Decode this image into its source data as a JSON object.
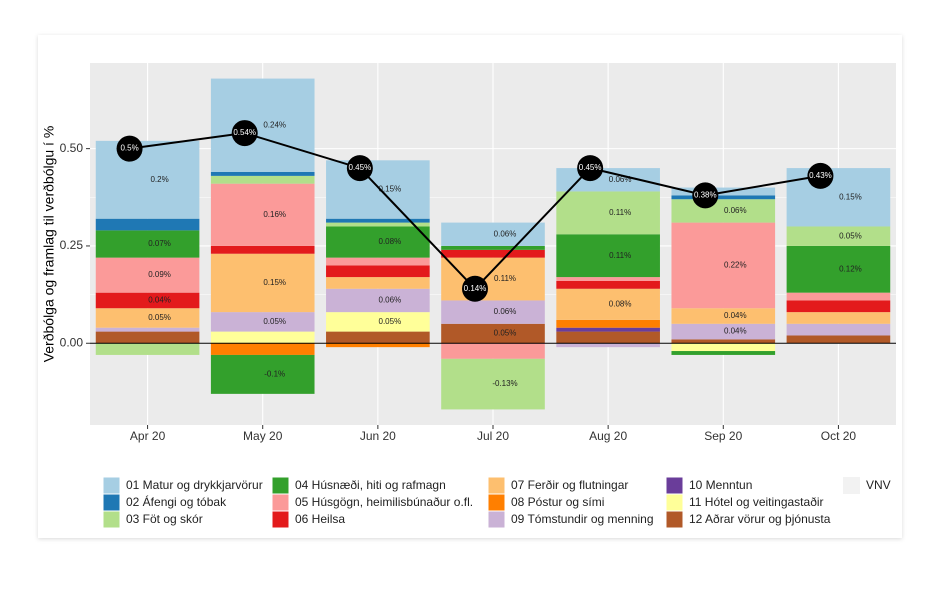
{
  "chart_data": {
    "type": "stacked_bar_line",
    "ylabel": "Verðbólga og framlag til verðbólgu í %",
    "categories": [
      "Apr 20",
      "May 20",
      "Jun 20",
      "Jul 20",
      "Aug 20",
      "Sep 20",
      "Oct 20"
    ],
    "ylim": [
      -0.21,
      0.72
    ],
    "yticks": [
      {
        "value": 0,
        "label": "0.00"
      },
      {
        "value": 0.25,
        "label": "0.25"
      },
      {
        "value": 0.5,
        "label": "0.50"
      }
    ],
    "grid": true,
    "series": [
      {
        "name": "01 Matur og drykkjarvörur",
        "color": "#a6cee3",
        "values": [
          0.2,
          0.24,
          0.15,
          0.06,
          0.06,
          0.02,
          0.15
        ],
        "value_labels": [
          "0.2%",
          "0.24%",
          "0.15%",
          "0.06%",
          "0.06%",
          null,
          "0.15%"
        ]
      },
      {
        "name": "02 Áfengi og tóbak",
        "color": "#1f78b4",
        "values": [
          0.03,
          0.01,
          0.01,
          0,
          0,
          0.01,
          0
        ],
        "value_labels": [
          null,
          null,
          null,
          null,
          null,
          null,
          null
        ]
      },
      {
        "name": "03 Föt og skór",
        "color": "#b2df8a",
        "values": [
          -0.03,
          0.02,
          0.01,
          -0.13,
          0.11,
          0.06,
          0.05
        ],
        "value_labels": [
          null,
          null,
          null,
          "-0.13%",
          "0.11%",
          "0.06%",
          "0.05%"
        ]
      },
      {
        "name": "04 Húsnæði, hiti og rafmagn",
        "color": "#33a02c",
        "values": [
          0.07,
          -0.1,
          0.08,
          0.01,
          0.11,
          -0.01,
          0.12
        ],
        "value_labels": [
          "0.07%",
          "-0.1%",
          "0.08%",
          null,
          "0.11%",
          null,
          "0.12%"
        ]
      },
      {
        "name": "05 Húsgögn, heimilisbúnaður o.fl.",
        "color": "#fb9a99",
        "values": [
          0.09,
          0.16,
          0.02,
          -0.04,
          0.01,
          0.22,
          0.02
        ],
        "value_labels": [
          "0.09%",
          "0.16%",
          null,
          null,
          null,
          "0.22%",
          null
        ]
      },
      {
        "name": "06 Heilsa",
        "color": "#e31a1c",
        "values": [
          0.04,
          0.02,
          0.03,
          0.02,
          0.02,
          0,
          0.03
        ],
        "value_labels": [
          "0.04%",
          null,
          null,
          null,
          null,
          null,
          null
        ]
      },
      {
        "name": "07 Ferðir og flutningar",
        "color": "#fdbf6f",
        "values": [
          0.05,
          0.15,
          0.03,
          0.11,
          0.08,
          0.04,
          0.03
        ],
        "value_labels": [
          "0.05%",
          "0.15%",
          null,
          "0.11%",
          "0.08%",
          "0.04%",
          null
        ]
      },
      {
        "name": "08 Póstur og sími",
        "color": "#ff7f00",
        "values": [
          0,
          -0.03,
          -0.01,
          0,
          0.02,
          0,
          0
        ],
        "value_labels": [
          null,
          null,
          null,
          null,
          null,
          null,
          null
        ]
      },
      {
        "name": "09 Tómstundir og menning",
        "color": "#cab2d6",
        "values": [
          0.01,
          0.05,
          0.06,
          0.06,
          -0.01,
          0.04,
          0.03
        ],
        "value_labels": [
          null,
          "0.05%",
          "0.06%",
          "0.06%",
          null,
          "0.04%",
          null
        ]
      },
      {
        "name": "10 Menntun",
        "color": "#6a3d9a",
        "values": [
          0,
          0,
          0,
          0,
          0.01,
          0,
          0
        ],
        "value_labels": [
          null,
          null,
          null,
          null,
          null,
          null,
          null
        ]
      },
      {
        "name": "11 Hótel og veitingastaðir",
        "color": "#ffff99",
        "values": [
          0,
          0.03,
          0.05,
          0,
          0,
          -0.02,
          0
        ],
        "value_labels": [
          null,
          null,
          "0.05%",
          null,
          null,
          null,
          null
        ]
      },
      {
        "name": "12 Aðrar vörur og þjónusta",
        "color": "#b15928",
        "values": [
          0.03,
          0,
          0.03,
          0.05,
          0.03,
          0.01,
          0.02
        ],
        "value_labels": [
          null,
          null,
          null,
          "0.05%",
          null,
          null,
          null
        ]
      }
    ],
    "line": {
      "name": "VNV",
      "color": "#000000",
      "values": [
        0.5,
        0.54,
        0.45,
        0.14,
        0.45,
        0.38,
        0.43
      ],
      "value_labels": [
        "0.5%",
        "0.54%",
        "0.45%",
        "0.14%",
        "0.45%",
        "0.38%",
        "0.43%"
      ]
    }
  }
}
